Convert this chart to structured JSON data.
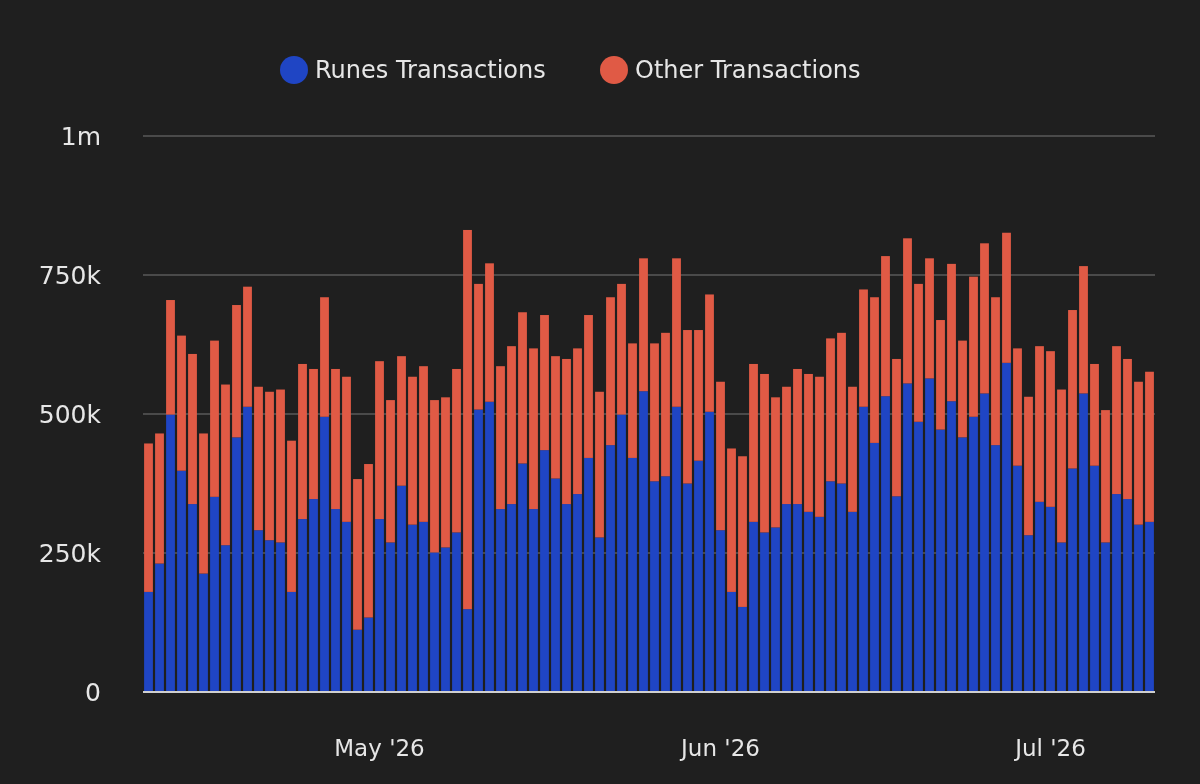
{
  "chart_data": {
    "type": "bar",
    "stacked": true,
    "legend": "top",
    "grid": "y",
    "x": [
      "2026-04-10",
      "2026-04-11",
      "2026-04-12",
      "2026-04-13",
      "2026-04-14",
      "2026-04-15",
      "2026-04-16",
      "2026-04-17",
      "2026-04-18",
      "2026-04-19",
      "2026-04-20",
      "2026-04-21",
      "2026-04-22",
      "2026-04-23",
      "2026-04-24",
      "2026-04-25",
      "2026-04-26",
      "2026-04-27",
      "2026-04-28",
      "2026-04-29",
      "2026-04-30",
      "2026-05-01",
      "2026-05-02",
      "2026-05-03",
      "2026-05-04",
      "2026-05-05",
      "2026-05-06",
      "2026-05-07",
      "2026-05-08",
      "2026-05-09",
      "2026-05-10",
      "2026-05-11",
      "2026-05-12",
      "2026-05-13",
      "2026-05-14",
      "2026-05-15",
      "2026-05-16",
      "2026-05-17",
      "2026-05-18",
      "2026-05-19",
      "2026-05-20",
      "2026-05-21",
      "2026-05-22",
      "2026-05-23",
      "2026-05-24",
      "2026-05-25",
      "2026-05-26",
      "2026-05-27",
      "2026-05-28",
      "2026-05-29",
      "2026-05-30",
      "2026-05-31",
      "2026-06-01",
      "2026-06-02",
      "2026-06-03",
      "2026-06-04",
      "2026-06-05",
      "2026-06-06",
      "2026-06-07",
      "2026-06-08",
      "2026-06-09",
      "2026-06-10",
      "2026-06-11",
      "2026-06-12",
      "2026-06-13",
      "2026-06-14",
      "2026-06-15",
      "2026-06-16",
      "2026-06-17",
      "2026-06-18",
      "2026-06-19",
      "2026-06-20",
      "2026-06-21",
      "2026-06-22",
      "2026-06-23",
      "2026-06-24",
      "2026-06-25",
      "2026-06-26",
      "2026-06-27",
      "2026-06-28",
      "2026-06-29",
      "2026-06-30",
      "2026-07-01",
      "2026-07-02",
      "2026-07-03",
      "2026-07-04",
      "2026-07-05",
      "2026-07-06",
      "2026-07-07",
      "2026-07-08",
      "2026-07-09",
      "2026-07-10"
    ],
    "xlim": [
      "2026-04-09T12:00",
      "2026-07-10T12:00"
    ],
    "xticks": [
      {
        "value": "2026-05-01",
        "label": "May '26"
      },
      {
        "value": "2026-06-01",
        "label": "Jun '26"
      },
      {
        "value": "2026-07-01",
        "label": "Jul '26"
      }
    ],
    "ylim": [
      0,
      1000000
    ],
    "yticks": [
      0,
      {
        "value": 250000,
        "label": "250k"
      },
      {
        "value": 500000,
        "label": "500k"
      },
      {
        "value": 750000,
        "label": "750k"
      },
      {
        "value": 1000000,
        "label": "1m"
      }
    ],
    "series": [
      {
        "name": "Runes Transactions",
        "color": "#1f45c4",
        "values": [
          180000,
          231000,
          499000,
          398000,
          338000,
          213000,
          351000,
          264000,
          458000,
          513000,
          291000,
          273000,
          269000,
          180000,
          311000,
          347000,
          495000,
          329000,
          306000,
          112000,
          134000,
          311000,
          269000,
          371000,
          301000,
          306000,
          251000,
          260000,
          287000,
          149000,
          508000,
          522000,
          329000,
          338000,
          411000,
          329000,
          435000,
          384000,
          338000,
          356000,
          421000,
          278000,
          444000,
          499000,
          421000,
          541000,
          379000,
          388000,
          513000,
          375000,
          416000,
          504000,
          291000,
          180000,
          153000,
          306000,
          287000,
          296000,
          338000,
          338000,
          324000,
          315000,
          379000,
          375000,
          324000,
          513000,
          448000,
          532000,
          352000,
          555000,
          486000,
          564000,
          472000,
          523000,
          458000,
          495000,
          537000,
          444000,
          592000,
          407000,
          282000,
          342000,
          333000,
          269000,
          402000,
          537000,
          407000,
          269000,
          356000,
          347000,
          301000,
          306000
        ]
      },
      {
        "name": "Other Transactions",
        "color": "#e05a45",
        "values": [
          267000,
          234000,
          206000,
          243000,
          270000,
          252000,
          281000,
          289000,
          238000,
          216000,
          258000,
          267000,
          275000,
          272000,
          279000,
          234000,
          215000,
          252000,
          261000,
          271000,
          276000,
          284000,
          256000,
          233000,
          266000,
          280000,
          274000,
          270000,
          294000,
          682000,
          226000,
          249000,
          257000,
          284000,
          272000,
          289000,
          243000,
          220000,
          261000,
          262000,
          257000,
          262000,
          266000,
          235000,
          206000,
          239000,
          248000,
          258000,
          267000,
          276000,
          235000,
          211000,
          267000,
          258000,
          271000,
          284000,
          285000,
          234000,
          211000,
          243000,
          248000,
          252000,
          257000,
          271000,
          225000,
          211000,
          262000,
          252000,
          247000,
          261000,
          248000,
          216000,
          197000,
          247000,
          174000,
          252000,
          270000,
          266000,
          234000,
          211000,
          249000,
          280000,
          280000,
          275000,
          285000,
          229000,
          183000,
          238000,
          266000,
          252000,
          257000,
          270000
        ]
      }
    ]
  }
}
